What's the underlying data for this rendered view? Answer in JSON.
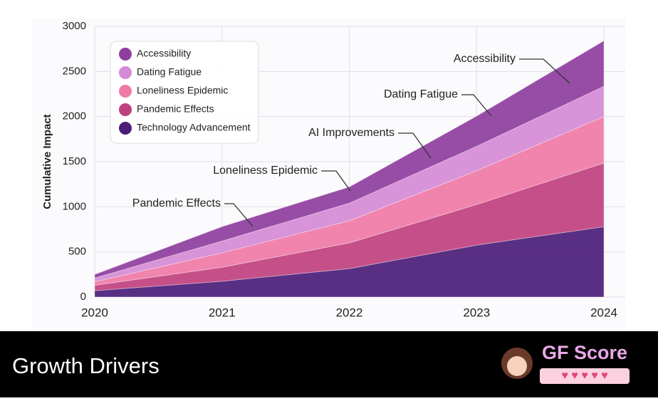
{
  "chart_data": {
    "type": "stacked-area",
    "y_label": "Cumulative Impact",
    "x": [
      2020,
      2021,
      2022,
      2023,
      2024
    ],
    "xlim": [
      2020,
      2024
    ],
    "xticks": [
      2020,
      2021,
      2022,
      2023,
      2024
    ],
    "ylim": [
      0,
      3000
    ],
    "yticks": [
      0,
      500,
      1000,
      1500,
      2000,
      2500,
      3000
    ],
    "grid": true,
    "legend": "top-left",
    "series": [
      {
        "name": "Technology Advancement",
        "color": "#4b1d78",
        "values": [
          70,
          175,
          315,
          575,
          780
        ]
      },
      {
        "name": "Pandemic Effects",
        "color": "#c0407f",
        "values": [
          60,
          155,
          285,
          450,
          705
        ]
      },
      {
        "name": "Loneliness Epidemic",
        "color": "#ef7aa6",
        "values": [
          40,
          160,
          245,
          375,
          515
        ]
      },
      {
        "name": "Dating Fatigue",
        "color": "#d58ad6",
        "values": [
          40,
          130,
          195,
          270,
          335
        ]
      },
      {
        "name": "Accessibility",
        "color": "#8e3e9e",
        "values": [
          40,
          160,
          180,
          335,
          505
        ]
      }
    ],
    "annotations": [
      "Accessibility",
      "Dating Fatigue",
      "AI Improvements",
      "Loneliness Epidemic",
      "Pandemic Effects"
    ]
  },
  "footer": {
    "title": "Growth Drivers",
    "logo": "GF Score"
  }
}
